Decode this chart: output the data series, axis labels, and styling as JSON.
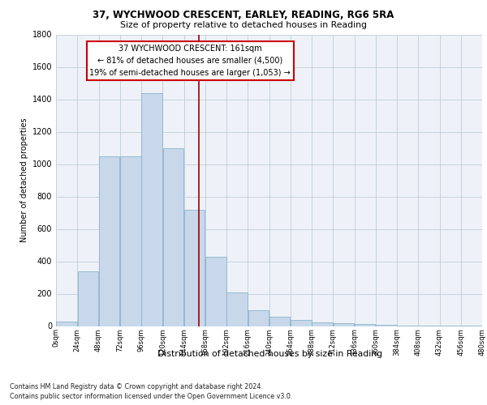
{
  "title1": "37, WYCHWOOD CRESCENT, EARLEY, READING, RG6 5RA",
  "title2": "Size of property relative to detached houses in Reading",
  "xlabel": "Distribution of detached houses by size in Reading",
  "ylabel": "Number of detached properties",
  "annotation_title": "37 WYCHWOOD CRESCENT: 161sqm",
  "annotation_line1": "← 81% of detached houses are smaller (4,500)",
  "annotation_line2": "19% of semi-detached houses are larger (1,053) →",
  "property_size": 161,
  "bin_edges": [
    0,
    24,
    48,
    72,
    96,
    120,
    144,
    168,
    192,
    216,
    240,
    264,
    288,
    312,
    336,
    360,
    384,
    408,
    432,
    456,
    480
  ],
  "bar_heights": [
    30,
    340,
    1050,
    1050,
    1440,
    1100,
    720,
    430,
    210,
    100,
    60,
    40,
    25,
    20,
    15,
    10,
    5,
    3,
    2,
    1
  ],
  "bar_color": "#c8d8ea",
  "bar_edge_color": "#8ab4cc",
  "vline_color": "#990000",
  "grid_color": "#c0ccd8",
  "bg_color": "#eef2f8",
  "annotation_box_color": "#ffffff",
  "annotation_box_edge": "#cc0000",
  "footnote1": "Contains HM Land Registry data © Crown copyright and database right 2024.",
  "footnote2": "Contains public sector information licensed under the Open Government Licence v3.0.",
  "ylim": [
    0,
    1800
  ],
  "yticks": [
    0,
    200,
    400,
    600,
    800,
    1000,
    1200,
    1400,
    1600,
    1800
  ]
}
